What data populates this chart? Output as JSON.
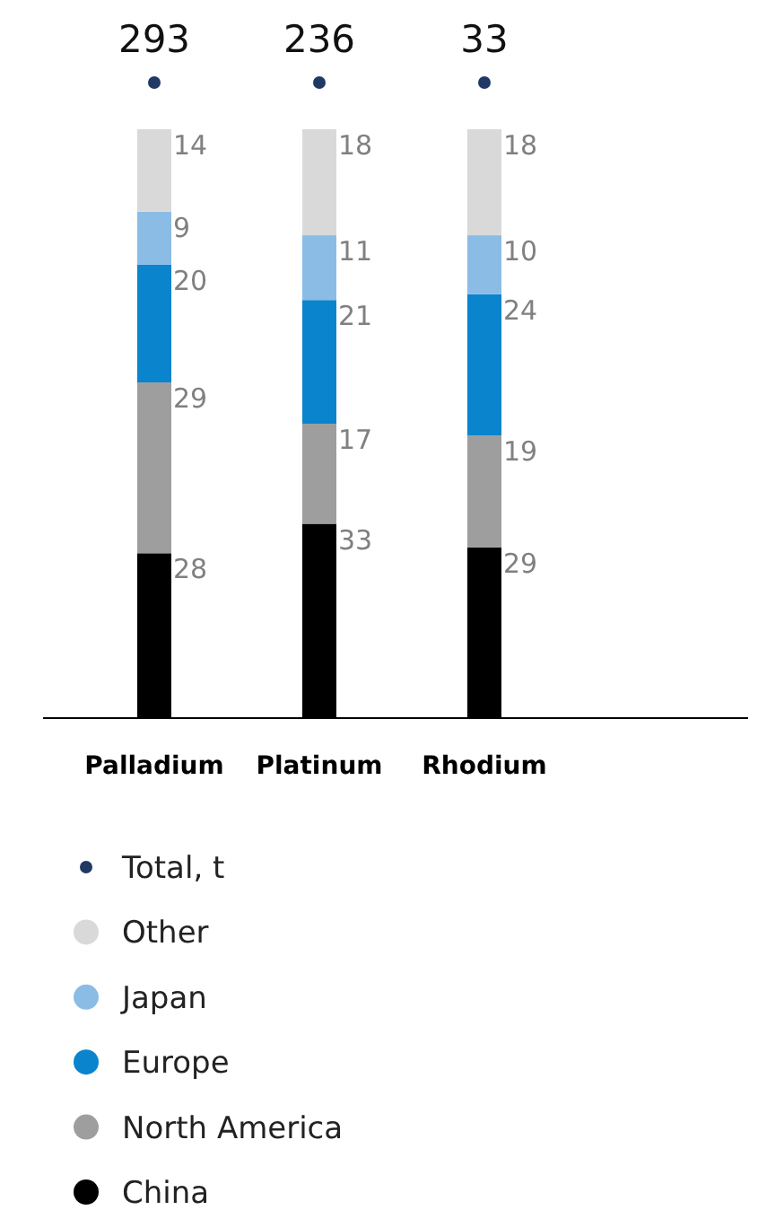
{
  "chart_data": {
    "type": "bar",
    "stacked": true,
    "categories": [
      "Palladium",
      "Platinum",
      "Rhodium"
    ],
    "series": [
      {
        "name": "China",
        "color": "#000000",
        "values": [
          28,
          33,
          29
        ]
      },
      {
        "name": "North America",
        "color": "#9e9e9e",
        "values": [
          29,
          17,
          19
        ]
      },
      {
        "name": "Europe",
        "color": "#0a84cc",
        "values": [
          20,
          21,
          24
        ]
      },
      {
        "name": "Japan",
        "color": "#8bbce6",
        "values": [
          9,
          11,
          10
        ]
      },
      {
        "name": "Other",
        "color": "#d9d9d9",
        "values": [
          14,
          18,
          18
        ]
      }
    ],
    "data_labels": true,
    "annotations": [
      "Total, t",
      "293",
      "236",
      "33"
    ],
    "legend": "bottom"
  }
}
